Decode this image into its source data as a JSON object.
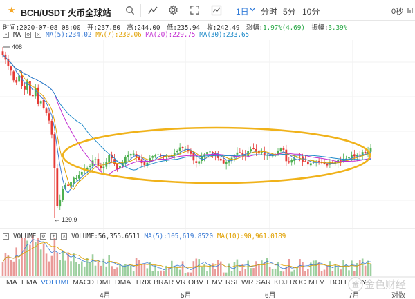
{
  "toolbar": {
    "title": "BCH/USDT 火币全球站",
    "periods": [
      "1日",
      "分时",
      "5分",
      "10分"
    ],
    "active_period": "1日",
    "timer_label": "0秒"
  },
  "info": {
    "time_label": "时间:",
    "time": "2020-07-08 08:00",
    "open_label": "开:",
    "open": "237.80",
    "high_label": "高:",
    "high": "244.00",
    "low_label": "低:",
    "low": "235.94",
    "close_label": "收:",
    "close": "242.49",
    "change_label": "涨幅:",
    "change": "1.97%(4.69)",
    "amplitude_label": "振幅:",
    "amplitude": "3.39%"
  },
  "ma": {
    "label": "MA",
    "ma5": "MA(5):234.02",
    "ma7": "MA(7):230.06",
    "ma20": "MA(20):229.75",
    "ma30": "MA(30):233.65"
  },
  "price_annotations": {
    "high_marker": "408",
    "low_marker": "129.9"
  },
  "volume": {
    "label": "VOLUME",
    "value": "VOLUME:56,355.6511",
    "ma5": "MA(5):105,619.8520",
    "ma10": "MA(10):90,961.0189"
  },
  "indicators": [
    "MA",
    "EMA",
    "VOLUME",
    "MACD",
    "DMI",
    "DMA",
    "TRIX",
    "BRAR",
    "VR",
    "OBV",
    "EMV",
    "RSI",
    "WR",
    "SAR",
    "KDJ",
    "ROC",
    "MTM",
    "BOLL",
    "PSY"
  ],
  "active_indicator": "VOLUME",
  "date_axis": [
    "4月",
    "5月",
    "6月",
    "7月",
    "对数"
  ],
  "watermark_text": "金色财经",
  "colors": {
    "up": "#4caf50",
    "down": "#e53935",
    "ma5": "#3b7bd4",
    "ma7": "#e0a000",
    "ma20": "#c22bd1",
    "ma30": "#1f8ac9",
    "ellipse": "#f0b21a",
    "active": "#2f7ad8"
  },
  "chart_data": {
    "type": "candlestick",
    "price_high": 408,
    "price_low": 129.9,
    "last_close": 242.49
  }
}
